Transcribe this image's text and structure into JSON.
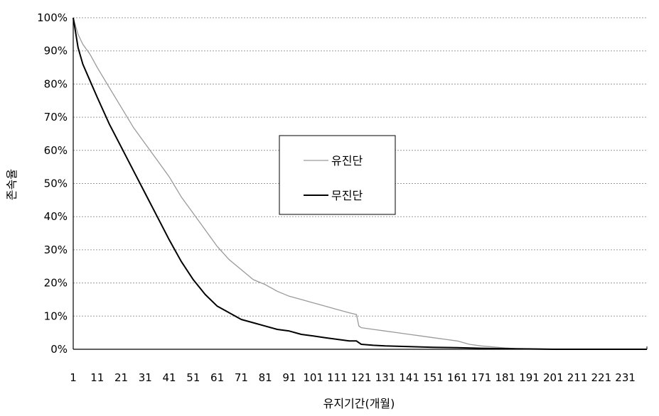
{
  "chart_data": {
    "type": "line",
    "title": "",
    "xlabel": "유지기간(개월)",
    "ylabel": "존속율",
    "xlim": [
      1,
      240
    ],
    "ylim": [
      0,
      100
    ],
    "x_ticks": [
      "1",
      "11",
      "21",
      "31",
      "41",
      "51",
      "61",
      "71",
      "81",
      "91",
      "101",
      "111",
      "121",
      "131",
      "141",
      "151",
      "161",
      "171",
      "181",
      "191",
      "201",
      "211",
      "221",
      "231"
    ],
    "y_ticks": [
      "0%",
      "10%",
      "20%",
      "30%",
      "40%",
      "50%",
      "60%",
      "70%",
      "80%",
      "90%",
      "100%"
    ],
    "grid": true,
    "legend_position": "center",
    "series": [
      {
        "name": "유진단",
        "color": "#9a9a9a",
        "x": [
          1,
          3,
          5,
          8,
          11,
          16,
          21,
          26,
          31,
          36,
          41,
          46,
          51,
          56,
          61,
          66,
          71,
          76,
          81,
          86,
          91,
          96,
          101,
          106,
          111,
          116,
          119,
          120,
          121,
          126,
          131,
          136,
          141,
          146,
          151,
          156,
          161,
          166,
          171,
          176,
          181,
          186,
          191,
          196,
          201,
          211,
          221,
          231,
          240
        ],
        "y": [
          100,
          95,
          92,
          89,
          85,
          79,
          73,
          67,
          62,
          57,
          52,
          46,
          41,
          36,
          31,
          27,
          24,
          21,
          19.5,
          17.5,
          16,
          15,
          14,
          13,
          12,
          11,
          10.5,
          7,
          6.5,
          6,
          5.5,
          5,
          4.5,
          4,
          3.5,
          3,
          2.5,
          1.5,
          1,
          0.7,
          0.4,
          0.2,
          0.1,
          0,
          0,
          0,
          0,
          0,
          0
        ]
      },
      {
        "name": "무진단",
        "color": "#000000",
        "x": [
          1,
          3,
          5,
          8,
          11,
          16,
          21,
          26,
          31,
          36,
          41,
          46,
          51,
          56,
          61,
          66,
          71,
          76,
          81,
          86,
          91,
          96,
          101,
          106,
          111,
          116,
          119,
          120,
          121,
          126,
          131,
          141,
          151,
          161,
          171,
          181,
          191,
          201,
          211,
          221,
          231,
          240
        ],
        "y": [
          100,
          91,
          86,
          81,
          76,
          68,
          61,
          54,
          47,
          40,
          33,
          26.5,
          21,
          16.5,
          13,
          11,
          9,
          8,
          7,
          6,
          5.5,
          4.5,
          4,
          3.5,
          3,
          2.5,
          2.5,
          2,
          1.5,
          1.2,
          1,
          0.8,
          0.6,
          0.5,
          0.3,
          0.2,
          0.1,
          0,
          0,
          0,
          0,
          0
        ]
      }
    ]
  }
}
